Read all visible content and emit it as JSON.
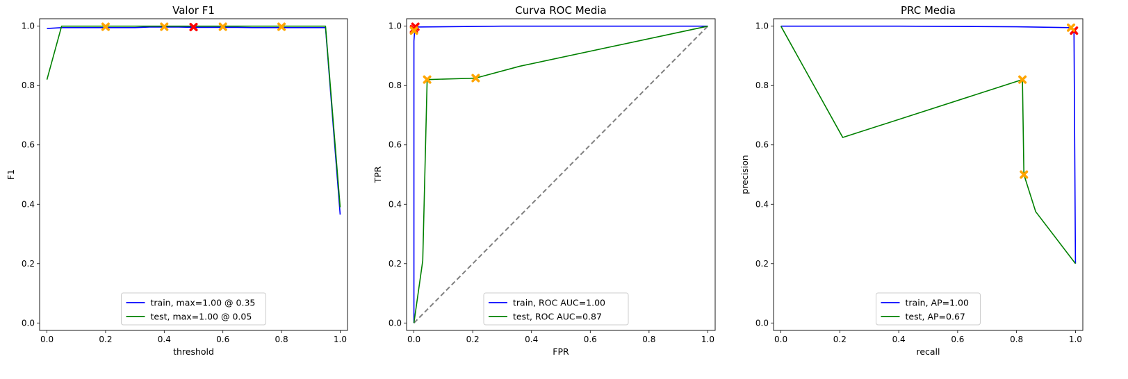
{
  "chart_data": [
    {
      "type": "line",
      "title": "Valor F1",
      "xlabel": "threshold",
      "ylabel": "F1",
      "xlim": [
        -0.025,
        1.025
      ],
      "ylim": [
        -0.025,
        1.025
      ],
      "xticks": [
        "0.0",
        "0.2",
        "0.4",
        "0.6",
        "0.8",
        "1.0"
      ],
      "yticks": [
        "0.0",
        "0.2",
        "0.4",
        "0.6",
        "0.8",
        "1.0"
      ],
      "legend_position": "lower-center",
      "series": [
        {
          "name": "train, max=1.00 @ 0.35",
          "color": "#0000ff",
          "x": [
            0.0,
            0.05,
            0.1,
            0.15,
            0.2,
            0.25,
            0.3,
            0.35,
            0.4,
            0.45,
            0.5,
            0.55,
            0.6,
            0.65,
            0.7,
            0.75,
            0.8,
            0.85,
            0.9,
            0.95,
            1.0
          ],
          "y": [
            0.992,
            0.995,
            0.995,
            0.995,
            0.995,
            0.995,
            0.995,
            0.997,
            0.997,
            0.997,
            0.996,
            0.996,
            0.996,
            0.996,
            0.995,
            0.995,
            0.995,
            0.995,
            0.995,
            0.995,
            0.365
          ]
        },
        {
          "name": "test, max=1.00 @ 0.05",
          "color": "#008000",
          "x": [
            0.0,
            0.05,
            0.1,
            0.15,
            0.2,
            0.25,
            0.3,
            0.35,
            0.4,
            0.45,
            0.5,
            0.55,
            0.6,
            0.65,
            0.7,
            0.75,
            0.8,
            0.85,
            0.9,
            0.95,
            1.0
          ],
          "y": [
            0.82,
            1.0,
            1.0,
            1.0,
            1.0,
            1.0,
            1.0,
            1.0,
            1.0,
            1.0,
            1.0,
            1.0,
            1.0,
            1.0,
            1.0,
            1.0,
            1.0,
            1.0,
            1.0,
            1.0,
            0.39
          ]
        }
      ],
      "markers": [
        {
          "x": 0.2,
          "y": 0.998,
          "color": "#ffa500"
        },
        {
          "x": 0.4,
          "y": 0.998,
          "color": "#ffa500"
        },
        {
          "x": 0.5,
          "y": 0.997,
          "color": "#ff0000"
        },
        {
          "x": 0.6,
          "y": 0.998,
          "color": "#ffa500"
        },
        {
          "x": 0.8,
          "y": 0.998,
          "color": "#ffa500"
        }
      ],
      "diagonal": false
    },
    {
      "type": "line",
      "title": "Curva ROC Media",
      "xlabel": "FPR",
      "ylabel": "TPR",
      "xlim": [
        -0.025,
        1.025
      ],
      "ylim": [
        -0.025,
        1.025
      ],
      "xticks": [
        "0.0",
        "0.2",
        "0.4",
        "0.6",
        "0.8",
        "1.0"
      ],
      "yticks": [
        "0.0",
        "0.2",
        "0.4",
        "0.6",
        "0.8",
        "1.0"
      ],
      "legend_position": "lower-center",
      "series": [
        {
          "name": "train, ROC AUC=1.00",
          "color": "#0000ff",
          "x": [
            0.0,
            0.0,
            0.003,
            0.005,
            0.3,
            1.0
          ],
          "y": [
            0.0,
            0.95,
            0.99,
            0.997,
            1.0,
            1.0
          ]
        },
        {
          "name": "test, ROC AUC=0.87",
          "color": "#008000",
          "x": [
            0.0,
            0.03,
            0.045,
            0.21,
            0.36,
            1.0
          ],
          "y": [
            0.0,
            0.21,
            0.82,
            0.825,
            0.865,
            1.0
          ]
        }
      ],
      "markers": [
        {
          "x": 0.0,
          "y": 0.99,
          "color": "#ff0000"
        },
        {
          "x": 0.005,
          "y": 0.998,
          "color": "#ff0000"
        },
        {
          "x": 0.0,
          "y": 0.985,
          "color": "#ffa500"
        },
        {
          "x": 0.045,
          "y": 0.82,
          "color": "#ffa500"
        },
        {
          "x": 0.21,
          "y": 0.825,
          "color": "#ffa500"
        }
      ],
      "diagonal": true
    },
    {
      "type": "line",
      "title": "PRC Media",
      "xlabel": "recall",
      "ylabel": "precision",
      "xlim": [
        -0.025,
        1.025
      ],
      "ylim": [
        -0.025,
        1.025
      ],
      "xticks": [
        "0.0",
        "0.2",
        "0.4",
        "0.6",
        "0.8",
        "1.0"
      ],
      "yticks": [
        "0.0",
        "0.2",
        "0.4",
        "0.6",
        "0.8",
        "1.0"
      ],
      "legend_position": "lower-center",
      "series": [
        {
          "name": "train, AP=1.00",
          "color": "#0000ff",
          "x": [
            0.0,
            0.4,
            0.8,
            0.985,
            0.995,
            1.0
          ],
          "y": [
            1.0,
            1.0,
            0.998,
            0.995,
            0.98,
            0.2
          ]
        },
        {
          "name": "test, AP=0.67",
          "color": "#008000",
          "x": [
            0.0,
            0.21,
            0.82,
            0.82,
            0.825,
            0.865,
            1.0
          ],
          "y": [
            1.0,
            0.625,
            0.82,
            0.82,
            0.5,
            0.375,
            0.2
          ]
        }
      ],
      "markers": [
        {
          "x": 0.995,
          "y": 0.985,
          "color": "#ff0000"
        },
        {
          "x": 0.985,
          "y": 0.995,
          "color": "#ffa500"
        },
        {
          "x": 0.82,
          "y": 0.82,
          "color": "#ffa500"
        },
        {
          "x": 0.825,
          "y": 0.5,
          "color": "#ffa500"
        }
      ],
      "diagonal": false
    }
  ]
}
